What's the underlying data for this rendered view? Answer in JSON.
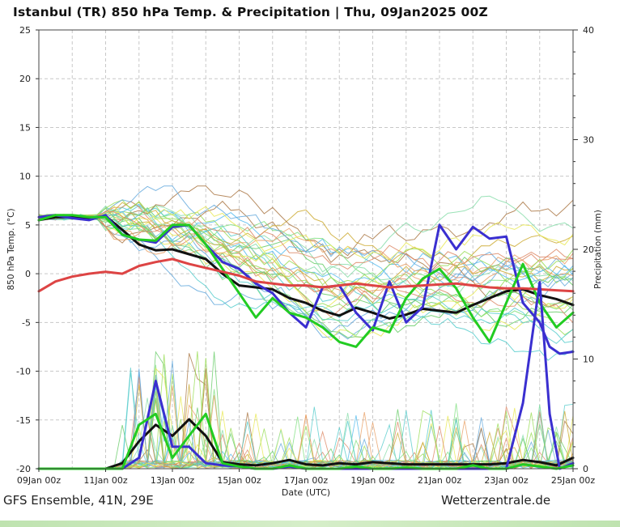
{
  "title": "Istanbul  (TR)  850 hPa Temp. & Precipitation | Thu, 09Jan2025 00Z",
  "footer": {
    "left": "GFS Ensemble, 41N, 29E",
    "right": "Wetterzentrale.de"
  },
  "chart_data": {
    "type": "line",
    "title": "Istanbul  (TR)  850 hPa Temp. & Precipitation | Thu, 09Jan2025 00Z",
    "xlabel": "Date (UTC)",
    "ylabel": "850 hPa Temp. (°C)",
    "y2label": "Precipitation (mm)",
    "ylim": [
      -20,
      25
    ],
    "y2lim": [
      0,
      40
    ],
    "yticks": [
      -20,
      -15,
      -10,
      -5,
      0,
      5,
      10,
      15,
      20,
      25
    ],
    "y2ticks": [
      0,
      10,
      20,
      30,
      40
    ],
    "xticks": [
      "09Jan 00z",
      "11Jan 00z",
      "13Jan 00z",
      "15Jan 00z",
      "17Jan 00z",
      "19Jan 00z",
      "21Jan 00z",
      "23Jan 00z",
      "25Jan 00z"
    ],
    "x_days": [
      0,
      16
    ],
    "grid": true,
    "series": [
      {
        "role": "temp-mean",
        "color": "#111111",
        "x": [
          0,
          0.5,
          1,
          1.5,
          2,
          2.5,
          3,
          3.5,
          4,
          4.5,
          5,
          5.5,
          6,
          6.5,
          7,
          7.5,
          8,
          8.5,
          9,
          9.5,
          10,
          10.5,
          11,
          11.5,
          12,
          12.5,
          13,
          13.5,
          14,
          14.5,
          15,
          15.5,
          16
        ],
        "values": [
          5.5,
          5.8,
          5.8,
          5.7,
          5.9,
          4.5,
          3,
          2.4,
          2.5,
          2,
          1.5,
          0,
          -1.2,
          -1.4,
          -1.6,
          -2.5,
          -3,
          -3.8,
          -4.3,
          -3.5,
          -4,
          -4.6,
          -4.2,
          -3.6,
          -3.8,
          -4,
          -3.2,
          -2.5,
          -1.8,
          -1.6,
          -2.2,
          -2.6,
          -3.2
        ]
      },
      {
        "role": "temp-control",
        "color": "#3a2fd0",
        "x": [
          0,
          0.5,
          1,
          1.5,
          2,
          2.5,
          3,
          3.5,
          4,
          4.5,
          5,
          5.5,
          6,
          6.5,
          7,
          7.5,
          8,
          8.5,
          9,
          9.5,
          10,
          10.5,
          11,
          11.5,
          12,
          12.5,
          13,
          13.5,
          14,
          14.5,
          15,
          15.3,
          15.6,
          16
        ],
        "values": [
          5.8,
          6,
          5.7,
          5.5,
          6,
          4,
          3.5,
          3.2,
          4.8,
          5,
          3,
          1.2,
          0.5,
          -1,
          -2,
          -4,
          -5.5,
          -1.4,
          -1.2,
          -4,
          -5.8,
          -0.8,
          -5,
          -3.4,
          5,
          2.5,
          4.8,
          3.6,
          3.8,
          -3,
          -5,
          -7.5,
          -8.2,
          -8
        ]
      },
      {
        "role": "temp-operational",
        "color": "#22cc22",
        "x": [
          0,
          0.5,
          1,
          1.5,
          2,
          2.5,
          3,
          3.5,
          4,
          4.5,
          5,
          5.5,
          6,
          6.5,
          7,
          7.5,
          8,
          8.5,
          9,
          9.5,
          10,
          10.5,
          11,
          11.5,
          12,
          12.5,
          13,
          13.5,
          14,
          14.5,
          15,
          15.5,
          16
        ],
        "values": [
          5.5,
          6,
          6,
          5.8,
          5.8,
          4,
          3.5,
          3.4,
          5,
          5,
          3,
          0.5,
          -2,
          -4.5,
          -2.5,
          -4,
          -4.5,
          -5.5,
          -7,
          -7.5,
          -5.5,
          -6,
          -2.5,
          -0.5,
          0.5,
          -1.5,
          -4.5,
          -7,
          -3,
          1,
          -3,
          -5.5,
          -4
        ]
      },
      {
        "role": "temp-climate",
        "color": "#dd4444",
        "x": [
          0,
          0.5,
          1,
          1.5,
          2,
          2.5,
          3,
          3.5,
          4,
          4.5,
          5,
          5.5,
          6,
          6.5,
          7,
          7.5,
          8,
          8.5,
          9,
          9.5,
          10,
          10.5,
          11,
          11.5,
          12,
          12.5,
          13,
          13.5,
          14,
          14.5,
          15,
          15.5,
          16
        ],
        "values": [
          -1.8,
          -0.8,
          -0.3,
          0,
          0.2,
          0,
          0.8,
          1.2,
          1.5,
          1,
          0.6,
          0.2,
          -0.2,
          -0.8,
          -1,
          -1.2,
          -1.2,
          -1.4,
          -1.2,
          -1,
          -1.2,
          -1.4,
          -1.3,
          -1.2,
          -1.1,
          -1,
          -1.2,
          -1.4,
          -1.5,
          -1.5,
          -1.6,
          -1.7,
          -1.8
        ]
      },
      {
        "role": "precip-mean",
        "color": "#111111",
        "x": [
          0,
          0.5,
          1,
          1.5,
          2,
          2.5,
          3,
          3.5,
          4,
          4.5,
          5,
          5.5,
          6,
          6.5,
          7,
          7.5,
          8,
          8.5,
          9,
          9.5,
          10,
          10.5,
          11,
          11.5,
          12,
          12.5,
          13,
          13.5,
          14,
          14.5,
          15,
          15.5,
          16
        ],
        "values": [
          0,
          0,
          0,
          0,
          0,
          0.5,
          2.5,
          4,
          3,
          4.5,
          3,
          0.6,
          0.4,
          0.3,
          0.5,
          0.8,
          0.4,
          0.3,
          0.5,
          0.4,
          0.6,
          0.5,
          0.4,
          0.4,
          0.4,
          0.4,
          0.4,
          0.4,
          0.5,
          0.8,
          0.6,
          0.3,
          1
        ]
      },
      {
        "role": "precip-control",
        "color": "#3a2fd0",
        "x": [
          0,
          0.5,
          1,
          1.5,
          2,
          2.5,
          3,
          3.5,
          4,
          4.5,
          5,
          5.5,
          6,
          6.5,
          7,
          7.5,
          8,
          8.5,
          9,
          9.5,
          10,
          10.5,
          11,
          11.5,
          12,
          12.5,
          13,
          13.5,
          14,
          14.5,
          15,
          15.3,
          15.6,
          16
        ],
        "values": [
          0,
          0,
          0,
          0,
          0,
          0,
          1,
          8,
          2,
          2,
          0.5,
          0.3,
          0.2,
          0,
          0,
          0.2,
          0,
          0,
          0,
          0,
          0,
          0,
          0,
          0,
          0,
          0,
          0,
          0,
          0,
          6,
          17,
          5,
          0,
          0.5
        ]
      },
      {
        "role": "precip-operational",
        "color": "#22cc22",
        "x": [
          0,
          0.5,
          1,
          1.5,
          2,
          2.5,
          3,
          3.5,
          4,
          4.5,
          5,
          5.5,
          6,
          6.5,
          7,
          7.5,
          8,
          8.5,
          9,
          9.5,
          10,
          10.5,
          11,
          11.5,
          12,
          12.5,
          13,
          13.5,
          14,
          14.5,
          15,
          15.5,
          16
        ],
        "values": [
          0,
          0,
          0,
          0,
          0,
          0,
          4,
          5,
          1,
          3,
          5,
          0.5,
          0.2,
          0,
          0,
          0.3,
          0,
          0,
          0,
          0.2,
          0,
          0,
          0.1,
          0,
          0,
          0,
          0.3,
          0,
          0,
          0.4,
          0.2,
          0,
          0.3
        ]
      }
    ]
  }
}
